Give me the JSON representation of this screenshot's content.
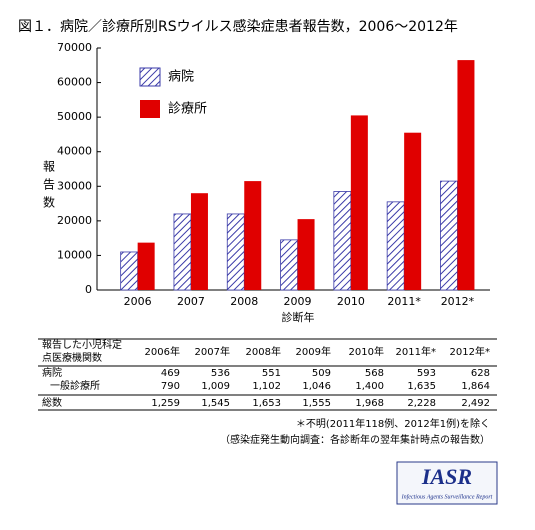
{
  "chart_data": {
    "type": "bar",
    "title": "図１．病院／診療所別RSウイルス感染症患者報告数，2006～2012年",
    "categories": [
      "2006",
      "2007",
      "2008",
      "2009",
      "2010",
      "2011*",
      "2012*"
    ],
    "series": [
      {
        "name": "病院",
        "color": "#3a3aa8",
        "hatch": true,
        "values": [
          11000,
          22000,
          22000,
          14500,
          28500,
          25500,
          31500
        ]
      },
      {
        "name": "診療所",
        "color": "#e00000",
        "hatch": false,
        "values": [
          13700,
          28000,
          31500,
          20500,
          50500,
          45500,
          66500
        ]
      }
    ],
    "ylabel": "報告数",
    "xlabel": "診断年",
    "ylim": [
      0,
      70000
    ],
    "yticks": [
      0,
      10000,
      20000,
      30000,
      40000,
      50000,
      60000,
      70000
    ],
    "grid": false,
    "legend": "top-left"
  },
  "table": {
    "header": [
      "報告した小児科定",
      "点医療機関数"
    ],
    "columns": [
      "2006年",
      "2007年",
      "2008年",
      "2009年",
      "2010年",
      "2011年*",
      "2012年*"
    ],
    "rows": [
      {
        "label": "病院",
        "values": [
          "469",
          "536",
          "551",
          "509",
          "568",
          "593",
          "628"
        ]
      },
      {
        "label": "一般診療所",
        "values": [
          "790",
          "1,009",
          "1,102",
          "1,046",
          "1,400",
          "1,635",
          "1,864"
        ]
      },
      {
        "label": "総数",
        "values": [
          "1,259",
          "1,545",
          "1,653",
          "1,555",
          "1,968",
          "2,228",
          "2,492"
        ]
      }
    ]
  },
  "notes": [
    "＊不明(2011年118例、2012年1例)を除く",
    "（感染症発生動向調査：各診断年の翌年集計時点の報告数）"
  ],
  "logo": {
    "title": "IASR",
    "subtitle": "Infectious Agents Surveillance Report"
  }
}
